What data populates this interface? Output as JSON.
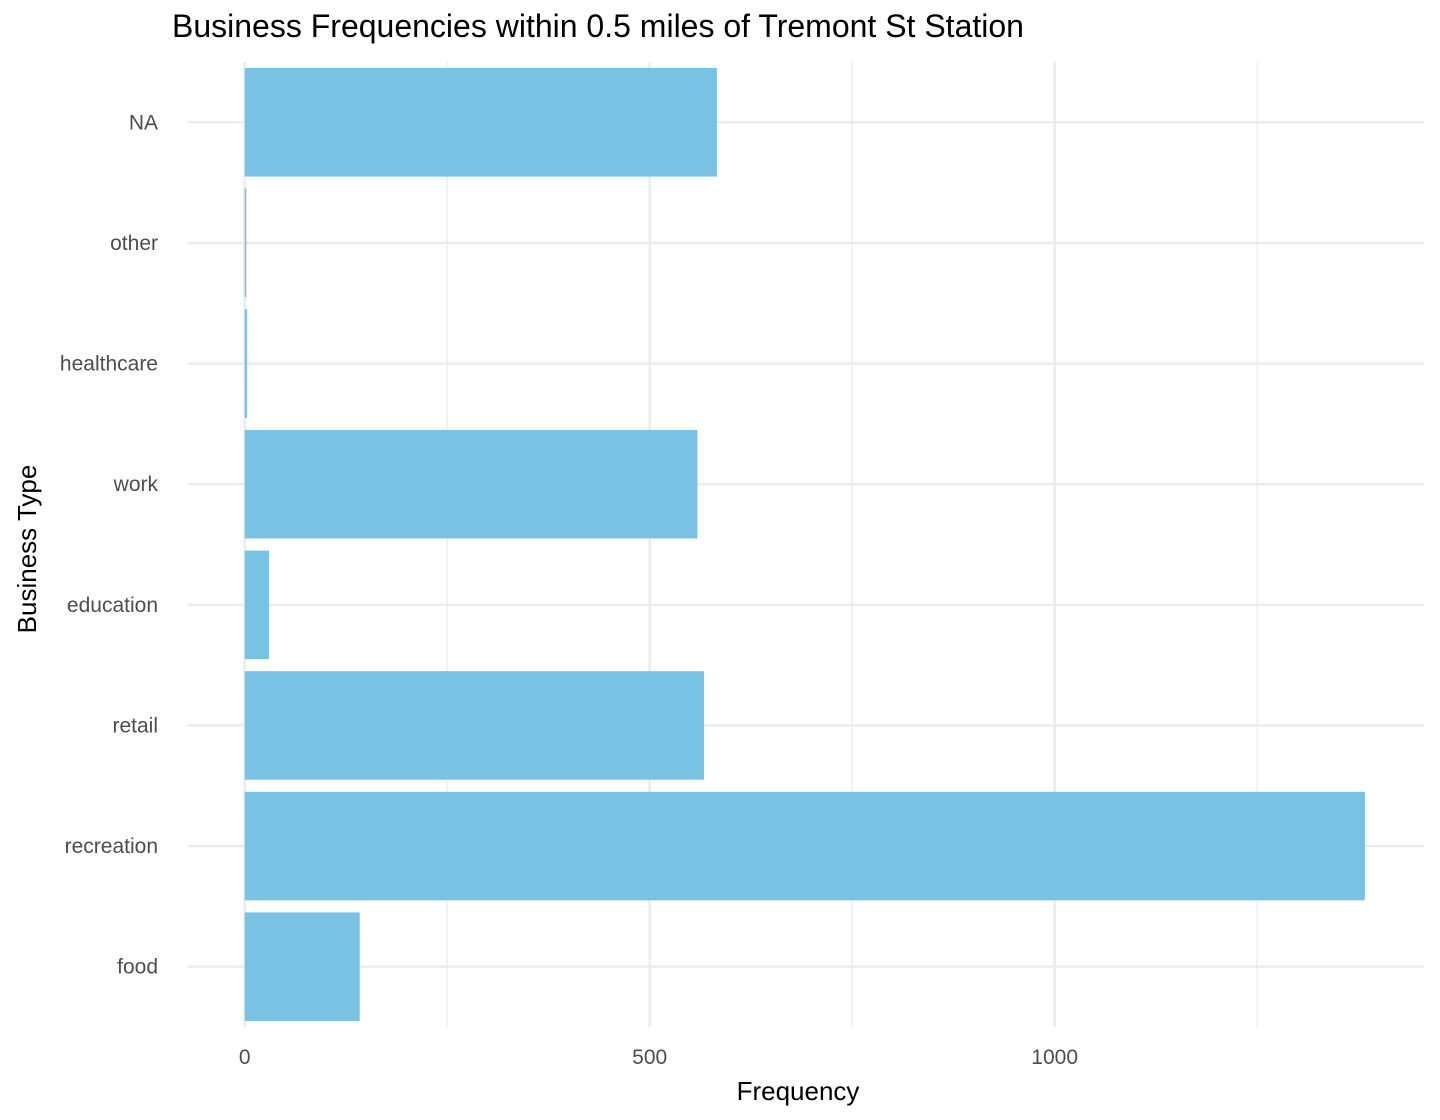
{
  "chart_data": {
    "type": "bar",
    "orientation": "horizontal",
    "title": "Business Frequencies within 0.5 miles of Tremont St Station",
    "xlabel": "Frequency",
    "ylabel": "Business Type",
    "categories": [
      "food",
      "recreation",
      "retail",
      "education",
      "work",
      "healthcare",
      "other",
      "NA"
    ],
    "values": [
      142,
      1383,
      567,
      30,
      559,
      3,
      2,
      583
    ],
    "xlim": [
      -70,
      1456
    ],
    "xticks": [
      0,
      500,
      1000
    ],
    "x_minor_gridlines": [
      250,
      750,
      1250
    ],
    "grid": true,
    "bar_color": "#7AC2E4",
    "grid_color": "#EBEBEB",
    "legend": "none"
  }
}
